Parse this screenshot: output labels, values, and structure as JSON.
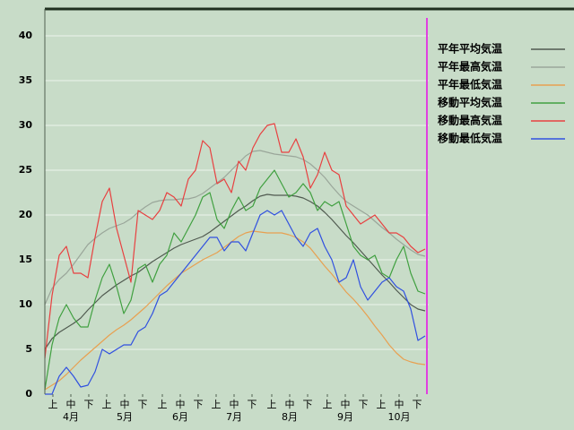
{
  "chart_data": {
    "type": "line",
    "x": [
      0,
      4,
      8,
      12,
      16,
      20,
      24,
      28,
      32,
      36,
      40,
      44,
      48,
      52,
      56,
      60,
      64,
      68,
      72,
      76,
      80,
      84,
      88,
      92,
      96,
      100,
      104,
      108,
      112,
      116,
      120,
      124,
      128,
      132,
      136,
      140,
      144,
      148,
      152,
      156,
      160,
      164,
      168,
      172,
      176,
      180,
      184,
      188,
      192,
      196,
      200,
      204,
      208,
      212
    ],
    "xlim": [
      0,
      214
    ],
    "ylim": [
      0,
      43
    ],
    "yticks": [
      0,
      5,
      10,
      15,
      20,
      25,
      30,
      35,
      40
    ],
    "grid": true,
    "xticks": [
      {
        "value": 4.5,
        "label": "上"
      },
      {
        "value": 14.5,
        "label": "中"
      },
      {
        "value": 24.5,
        "label": "下"
      },
      {
        "value": 34.5,
        "label": "上"
      },
      {
        "value": 44.5,
        "label": "中"
      },
      {
        "value": 54.5,
        "label": "下"
      },
      {
        "value": 65.5,
        "label": "上"
      },
      {
        "value": 75.5,
        "label": "中"
      },
      {
        "value": 85.5,
        "label": "下"
      },
      {
        "value": 95.5,
        "label": "上"
      },
      {
        "value": 105.5,
        "label": "中"
      },
      {
        "value": 115.5,
        "label": "下"
      },
      {
        "value": 126.5,
        "label": "上"
      },
      {
        "value": 136.5,
        "label": "中"
      },
      {
        "value": 146.5,
        "label": "下"
      },
      {
        "value": 157.5,
        "label": "上"
      },
      {
        "value": 167.5,
        "label": "中"
      },
      {
        "value": 177.5,
        "label": "下"
      },
      {
        "value": 187.5,
        "label": "上"
      },
      {
        "value": 197.5,
        "label": "中"
      },
      {
        "value": 207.5,
        "label": "下"
      }
    ],
    "month_ticks": [
      {
        "value": 14.5,
        "label": "4月"
      },
      {
        "value": 44.5,
        "label": "5月"
      },
      {
        "value": 75.5,
        "label": "6月"
      },
      {
        "value": 105.5,
        "label": "7月"
      },
      {
        "value": 136.5,
        "label": "8月"
      },
      {
        "value": 167.5,
        "label": "9月"
      },
      {
        "value": 197.5,
        "label": "10月"
      }
    ],
    "series": [
      {
        "name": "平年平均気温",
        "color": "#505a50",
        "values": [
          5.0,
          6.2,
          6.9,
          7.4,
          7.9,
          8.5,
          9.4,
          10.2,
          11.0,
          11.6,
          12.2,
          12.7,
          13.2,
          13.6,
          14.2,
          14.8,
          15.3,
          15.8,
          16.3,
          16.7,
          17.0,
          17.3,
          17.6,
          18.1,
          18.7,
          19.3,
          19.9,
          20.5,
          21.0,
          21.6,
          22.1,
          22.3,
          22.2,
          22.2,
          22.2,
          22.1,
          21.9,
          21.5,
          21.0,
          20.3,
          19.5,
          18.6,
          17.7,
          16.9,
          16.0,
          15.1,
          14.2,
          13.3,
          12.5,
          11.6,
          10.8,
          10.0,
          9.5,
          9.3
        ]
      },
      {
        "name": "平年最高気温",
        "color": "#9aa69a",
        "values": [
          10.0,
          11.8,
          12.8,
          13.5,
          14.5,
          15.6,
          16.7,
          17.4,
          18.0,
          18.5,
          18.8,
          19.1,
          19.6,
          20.3,
          20.9,
          21.4,
          21.6,
          21.7,
          21.7,
          21.8,
          21.8,
          22.0,
          22.4,
          23.0,
          23.6,
          24.2,
          25.0,
          25.8,
          26.6,
          27.1,
          27.2,
          27.0,
          26.8,
          26.7,
          26.6,
          26.5,
          26.2,
          25.7,
          25.0,
          24.2,
          23.2,
          22.3,
          21.5,
          21.0,
          20.5,
          20.0,
          19.3,
          18.6,
          18.0,
          17.3,
          16.7,
          16.1,
          15.6,
          15.4
        ]
      },
      {
        "name": "平年最低気温",
        "color": "#e8a050",
        "values": [
          0.5,
          1.0,
          1.5,
          2.2,
          3.0,
          3.8,
          4.5,
          5.2,
          5.9,
          6.6,
          7.2,
          7.7,
          8.3,
          9.0,
          9.7,
          10.5,
          11.3,
          12.1,
          12.8,
          13.5,
          14.0,
          14.5,
          15.0,
          15.4,
          15.8,
          16.4,
          17.0,
          17.6,
          18.0,
          18.2,
          18.1,
          18.0,
          18.0,
          18.0,
          17.8,
          17.5,
          17.0,
          16.3,
          15.3,
          14.3,
          13.4,
          12.4,
          11.4,
          10.6,
          9.7,
          8.7,
          7.6,
          6.6,
          5.5,
          4.6,
          3.9,
          3.6,
          3.4,
          3.3
        ]
      },
      {
        "name": "移動平均気温",
        "color": "#40a040",
        "values": [
          0.5,
          5.5,
          8.5,
          10.0,
          8.5,
          7.5,
          7.5,
          10.5,
          13.0,
          14.5,
          12.0,
          9.0,
          10.5,
          14.0,
          14.5,
          12.5,
          14.5,
          15.5,
          18.0,
          17.0,
          18.5,
          20.0,
          22.0,
          22.5,
          19.5,
          18.5,
          20.5,
          22.0,
          20.5,
          21.0,
          23.0,
          24.0,
          25.0,
          23.5,
          22.0,
          22.5,
          23.5,
          22.5,
          20.5,
          21.5,
          21.0,
          21.5,
          19.0,
          16.5,
          15.5,
          15.0,
          15.5,
          13.5,
          13.0,
          15.0,
          16.5,
          13.5,
          11.5,
          11.2
        ]
      },
      {
        "name": "移動最高気温",
        "color": "#e84040",
        "values": [
          4.0,
          11.0,
          15.5,
          16.5,
          13.5,
          13.5,
          13.0,
          17.5,
          21.5,
          23.0,
          18.5,
          15.5,
          12.5,
          20.5,
          20.0,
          19.5,
          20.5,
          22.5,
          22.0,
          21.0,
          24.0,
          25.0,
          28.3,
          27.5,
          23.5,
          24.0,
          22.5,
          26.0,
          25.0,
          27.5,
          29.0,
          30.0,
          30.2,
          27.0,
          27.0,
          28.5,
          26.5,
          23.0,
          24.5,
          27.0,
          25.0,
          24.5,
          21.0,
          20.0,
          19.0,
          19.5,
          20.0,
          19.0,
          18.0,
          18.0,
          17.5,
          16.5,
          15.8,
          16.2
        ]
      },
      {
        "name": "移動最低気温",
        "color": "#3050e0",
        "values": [
          0.0,
          0.0,
          2.0,
          3.0,
          2.0,
          0.8,
          1.0,
          2.5,
          5.0,
          4.5,
          5.0,
          5.5,
          5.5,
          7.0,
          7.5,
          9.0,
          11.0,
          11.5,
          12.5,
          13.5,
          14.5,
          15.5,
          16.5,
          17.5,
          17.5,
          16.0,
          17.0,
          17.0,
          16.0,
          18.0,
          20.0,
          20.5,
          20.0,
          20.5,
          19.0,
          17.5,
          16.5,
          18.0,
          18.5,
          16.5,
          15.0,
          12.5,
          13.0,
          15.0,
          12.0,
          10.5,
          11.5,
          12.5,
          13.0,
          12.0,
          11.5,
          9.5,
          6.0,
          6.5
        ]
      }
    ]
  }
}
